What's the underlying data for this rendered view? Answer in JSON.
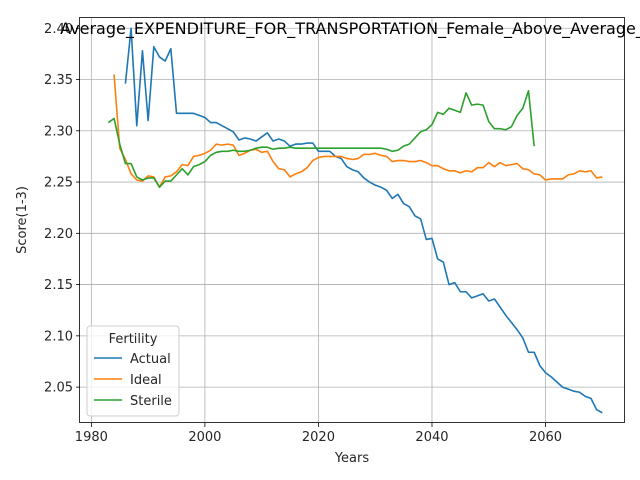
{
  "chart_data": {
    "type": "line",
    "title": "Average_EXPENDITURE_FOR_TRANSPORTATION_Female_Above_Average_",
    "xlabel": "Years",
    "ylabel": "Score(1-3)",
    "xlim": [
      1978,
      2074
    ],
    "ylim": [
      2.015,
      2.41
    ],
    "xticks": [
      1980,
      2000,
      2020,
      2040,
      2060
    ],
    "yticks": [
      2.05,
      2.1,
      2.15,
      2.2,
      2.25,
      2.3,
      2.35,
      2.4
    ],
    "xtick_labels": [
      "1980",
      "2000",
      "2020",
      "2040",
      "2060"
    ],
    "ytick_labels": [
      "2.05",
      "2.10",
      "2.15",
      "2.20",
      "2.25",
      "2.30",
      "2.35",
      "2.40"
    ],
    "grid": true,
    "legend": {
      "title": "Fertility",
      "placement": "lower-left"
    },
    "series": [
      {
        "name": "Actual",
        "color": "#1f77b4",
        "points": [
          [
            1986,
            2.346
          ],
          [
            1987,
            2.4
          ],
          [
            1988,
            2.305
          ],
          [
            1989,
            2.378
          ],
          [
            1990,
            2.31
          ],
          [
            1991,
            2.382
          ],
          [
            1992,
            2.372
          ],
          [
            1993,
            2.368
          ],
          [
            1994,
            2.38
          ],
          [
            1995,
            2.317
          ],
          [
            1996,
            2.317
          ],
          [
            1997,
            2.317
          ],
          [
            1998,
            2.317
          ],
          [
            1999,
            2.315
          ],
          [
            2000,
            2.313
          ],
          [
            2001,
            2.308
          ],
          [
            2002,
            2.308
          ],
          [
            2003,
            2.305
          ],
          [
            2004,
            2.302
          ],
          [
            2005,
            2.299
          ],
          [
            2006,
            2.291
          ],
          [
            2007,
            2.293
          ],
          [
            2008,
            2.292
          ],
          [
            2009,
            2.29
          ],
          [
            2010,
            2.294
          ],
          [
            2011,
            2.298
          ],
          [
            2012,
            2.29
          ],
          [
            2013,
            2.292
          ],
          [
            2014,
            2.29
          ],
          [
            2015,
            2.285
          ],
          [
            2016,
            2.287
          ],
          [
            2017,
            2.287
          ],
          [
            2018,
            2.288
          ],
          [
            2019,
            2.288
          ],
          [
            2020,
            2.28
          ],
          [
            2021,
            2.28
          ],
          [
            2022,
            2.28
          ],
          [
            2023,
            2.275
          ],
          [
            2024,
            2.273
          ],
          [
            2025,
            2.265
          ],
          [
            2026,
            2.262
          ],
          [
            2027,
            2.26
          ],
          [
            2028,
            2.254
          ],
          [
            2029,
            2.25
          ],
          [
            2030,
            2.247
          ],
          [
            2031,
            2.245
          ],
          [
            2032,
            2.242
          ],
          [
            2033,
            2.234
          ],
          [
            2034,
            2.238
          ],
          [
            2035,
            2.229
          ],
          [
            2036,
            2.226
          ],
          [
            2037,
            2.217
          ],
          [
            2038,
            2.214
          ],
          [
            2039,
            2.194
          ],
          [
            2040,
            2.195
          ],
          [
            2041,
            2.175
          ],
          [
            2042,
            2.172
          ],
          [
            2043,
            2.15
          ],
          [
            2044,
            2.152
          ],
          [
            2045,
            2.143
          ],
          [
            2046,
            2.143
          ],
          [
            2047,
            2.137
          ],
          [
            2048,
            2.139
          ],
          [
            2049,
            2.141
          ],
          [
            2050,
            2.134
          ],
          [
            2051,
            2.136
          ],
          [
            2052,
            2.128
          ],
          [
            2053,
            2.12
          ],
          [
            2054,
            2.113
          ],
          [
            2055,
            2.106
          ],
          [
            2056,
            2.098
          ],
          [
            2057,
            2.084
          ],
          [
            2058,
            2.084
          ],
          [
            2059,
            2.071
          ],
          [
            2060,
            2.064
          ],
          [
            2061,
            2.06
          ],
          [
            2062,
            2.055
          ],
          [
            2063,
            2.05
          ],
          [
            2064,
            2.048
          ],
          [
            2065,
            2.046
          ],
          [
            2066,
            2.045
          ],
          [
            2067,
            2.041
          ],
          [
            2068,
            2.039
          ],
          [
            2069,
            2.028
          ],
          [
            2070,
            2.025
          ]
        ]
      },
      {
        "name": "Ideal",
        "color": "#ff7f0e",
        "points": [
          [
            1984,
            2.355
          ],
          [
            1985,
            2.283
          ],
          [
            1986,
            2.272
          ],
          [
            1987,
            2.258
          ],
          [
            1988,
            2.252
          ],
          [
            1989,
            2.251
          ],
          [
            1990,
            2.256
          ],
          [
            1991,
            2.255
          ],
          [
            1992,
            2.245
          ],
          [
            1993,
            2.255
          ],
          [
            1994,
            2.256
          ],
          [
            1995,
            2.26
          ],
          [
            1996,
            2.267
          ],
          [
            1997,
            2.266
          ],
          [
            1998,
            2.275
          ],
          [
            1999,
            2.276
          ],
          [
            2000,
            2.278
          ],
          [
            2001,
            2.281
          ],
          [
            2002,
            2.287
          ],
          [
            2003,
            2.286
          ],
          [
            2004,
            2.287
          ],
          [
            2005,
            2.286
          ],
          [
            2006,
            2.276
          ],
          [
            2007,
            2.278
          ],
          [
            2008,
            2.281
          ],
          [
            2009,
            2.282
          ],
          [
            2010,
            2.279
          ],
          [
            2011,
            2.28
          ],
          [
            2012,
            2.27
          ],
          [
            2013,
            2.263
          ],
          [
            2014,
            2.262
          ],
          [
            2015,
            2.255
          ],
          [
            2016,
            2.258
          ],
          [
            2017,
            2.26
          ],
          [
            2018,
            2.264
          ],
          [
            2019,
            2.271
          ],
          [
            2020,
            2.274
          ],
          [
            2021,
            2.275
          ],
          [
            2022,
            2.275
          ],
          [
            2023,
            2.275
          ],
          [
            2024,
            2.275
          ],
          [
            2025,
            2.273
          ],
          [
            2026,
            2.272
          ],
          [
            2027,
            2.273
          ],
          [
            2028,
            2.277
          ],
          [
            2029,
            2.277
          ],
          [
            2030,
            2.278
          ],
          [
            2031,
            2.276
          ],
          [
            2032,
            2.275
          ],
          [
            2033,
            2.27
          ],
          [
            2034,
            2.271
          ],
          [
            2035,
            2.271
          ],
          [
            2036,
            2.27
          ],
          [
            2037,
            2.27
          ],
          [
            2038,
            2.271
          ],
          [
            2039,
            2.269
          ],
          [
            2040,
            2.266
          ],
          [
            2041,
            2.266
          ],
          [
            2042,
            2.263
          ],
          [
            2043,
            2.261
          ],
          [
            2044,
            2.261
          ],
          [
            2045,
            2.259
          ],
          [
            2046,
            2.261
          ],
          [
            2047,
            2.26
          ],
          [
            2048,
            2.264
          ],
          [
            2049,
            2.264
          ],
          [
            2050,
            2.269
          ],
          [
            2051,
            2.265
          ],
          [
            2052,
            2.269
          ],
          [
            2053,
            2.266
          ],
          [
            2054,
            2.267
          ],
          [
            2055,
            2.268
          ],
          [
            2056,
            2.263
          ],
          [
            2057,
            2.262
          ],
          [
            2058,
            2.258
          ],
          [
            2059,
            2.257
          ],
          [
            2060,
            2.252
          ],
          [
            2061,
            2.253
          ],
          [
            2062,
            2.253
          ],
          [
            2063,
            2.253
          ],
          [
            2064,
            2.257
          ],
          [
            2065,
            2.258
          ],
          [
            2066,
            2.261
          ],
          [
            2067,
            2.26
          ],
          [
            2068,
            2.261
          ],
          [
            2069,
            2.254
          ],
          [
            2070,
            2.255
          ]
        ]
      },
      {
        "name": "Sterile",
        "color": "#2ca02c",
        "points": [
          [
            1983,
            2.308
          ],
          [
            1984,
            2.312
          ],
          [
            1985,
            2.287
          ],
          [
            1986,
            2.268
          ],
          [
            1987,
            2.268
          ],
          [
            1988,
            2.255
          ],
          [
            1989,
            2.252
          ],
          [
            1990,
            2.254
          ],
          [
            1991,
            2.254
          ],
          [
            1992,
            2.245
          ],
          [
            1993,
            2.251
          ],
          [
            1994,
            2.251
          ],
          [
            1995,
            2.257
          ],
          [
            1996,
            2.263
          ],
          [
            1997,
            2.257
          ],
          [
            1998,
            2.265
          ],
          [
            1999,
            2.267
          ],
          [
            2000,
            2.27
          ],
          [
            2001,
            2.276
          ],
          [
            2002,
            2.279
          ],
          [
            2003,
            2.28
          ],
          [
            2004,
            2.28
          ],
          [
            2005,
            2.281
          ],
          [
            2006,
            2.28
          ],
          [
            2007,
            2.28
          ],
          [
            2008,
            2.281
          ],
          [
            2009,
            2.283
          ],
          [
            2010,
            2.284
          ],
          [
            2011,
            2.284
          ],
          [
            2012,
            2.282
          ],
          [
            2013,
            2.283
          ],
          [
            2014,
            2.283
          ],
          [
            2015,
            2.284
          ],
          [
            2016,
            2.283
          ],
          [
            2017,
            2.283
          ],
          [
            2018,
            2.283
          ],
          [
            2019,
            2.283
          ],
          [
            2020,
            2.283
          ],
          [
            2021,
            2.283
          ],
          [
            2022,
            2.283
          ],
          [
            2023,
            2.283
          ],
          [
            2024,
            2.283
          ],
          [
            2025,
            2.283
          ],
          [
            2026,
            2.283
          ],
          [
            2027,
            2.283
          ],
          [
            2028,
            2.283
          ],
          [
            2029,
            2.283
          ],
          [
            2030,
            2.283
          ],
          [
            2031,
            2.283
          ],
          [
            2032,
            2.282
          ],
          [
            2033,
            2.28
          ],
          [
            2034,
            2.281
          ],
          [
            2035,
            2.285
          ],
          [
            2036,
            2.287
          ],
          [
            2037,
            2.293
          ],
          [
            2038,
            2.299
          ],
          [
            2039,
            2.301
          ],
          [
            2040,
            2.306
          ],
          [
            2041,
            2.318
          ],
          [
            2042,
            2.316
          ],
          [
            2043,
            2.322
          ],
          [
            2044,
            2.32
          ],
          [
            2045,
            2.318
          ],
          [
            2046,
            2.337
          ],
          [
            2047,
            2.325
          ],
          [
            2048,
            2.326
          ],
          [
            2049,
            2.325
          ],
          [
            2050,
            2.309
          ],
          [
            2051,
            2.302
          ],
          [
            2052,
            2.302
          ],
          [
            2053,
            2.301
          ],
          [
            2054,
            2.304
          ],
          [
            2055,
            2.315
          ],
          [
            2056,
            2.322
          ],
          [
            2057,
            2.339
          ],
          [
            2058,
            2.285
          ]
        ]
      }
    ]
  }
}
